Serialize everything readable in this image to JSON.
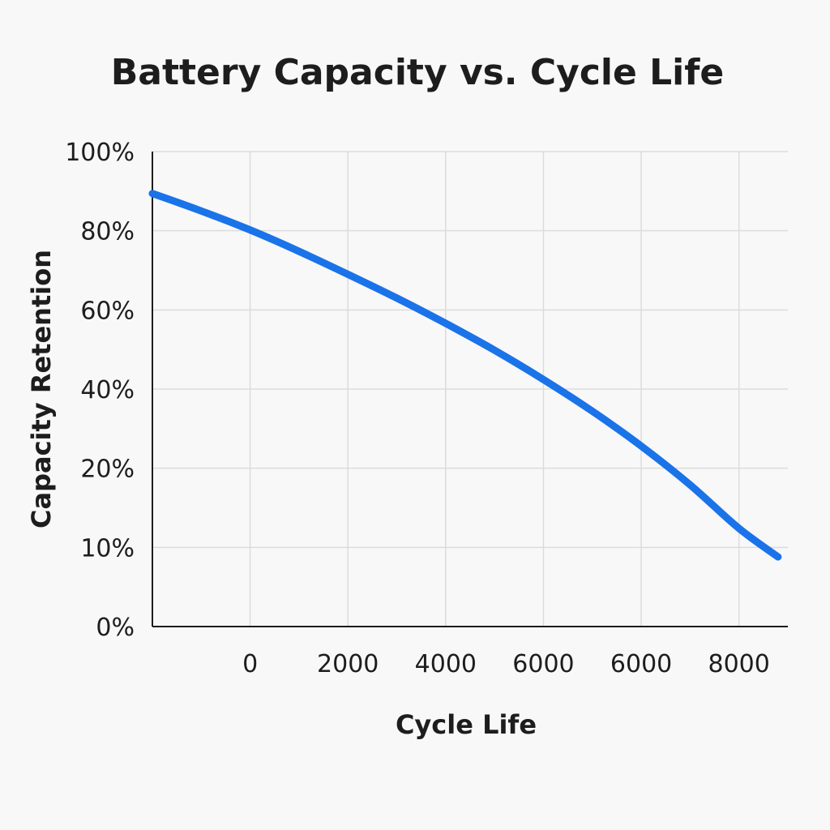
{
  "chart_data": {
    "type": "line",
    "title": "Battery Capacity vs. Cycle Life",
    "xlabel": "Cycle Life",
    "ylabel": "Capacity Retention",
    "x_ticks": [
      "0",
      "2000",
      "4000",
      "6000",
      "6000",
      "8000"
    ],
    "y_ticks": [
      "0%",
      "10%",
      "20%",
      "40%",
      "60%",
      "80%",
      "100%"
    ],
    "grid": true,
    "legend": "none",
    "series_color": "#1a73e8",
    "x_tick_index_range": [
      -1,
      5.5
    ],
    "y_tick_index_range": [
      0,
      6
    ],
    "series": [
      {
        "x_tick_index": [
          -1,
          -0.5,
          0,
          0.5,
          1,
          1.5,
          2,
          2.5,
          3,
          3.5,
          4,
          4.5,
          5,
          5.4
        ],
        "y_tick_index": [
          5.47,
          5.25,
          5.01,
          4.74,
          4.45,
          4.15,
          3.83,
          3.49,
          3.12,
          2.72,
          2.28,
          1.79,
          1.24,
          0.88
        ]
      }
    ]
  }
}
